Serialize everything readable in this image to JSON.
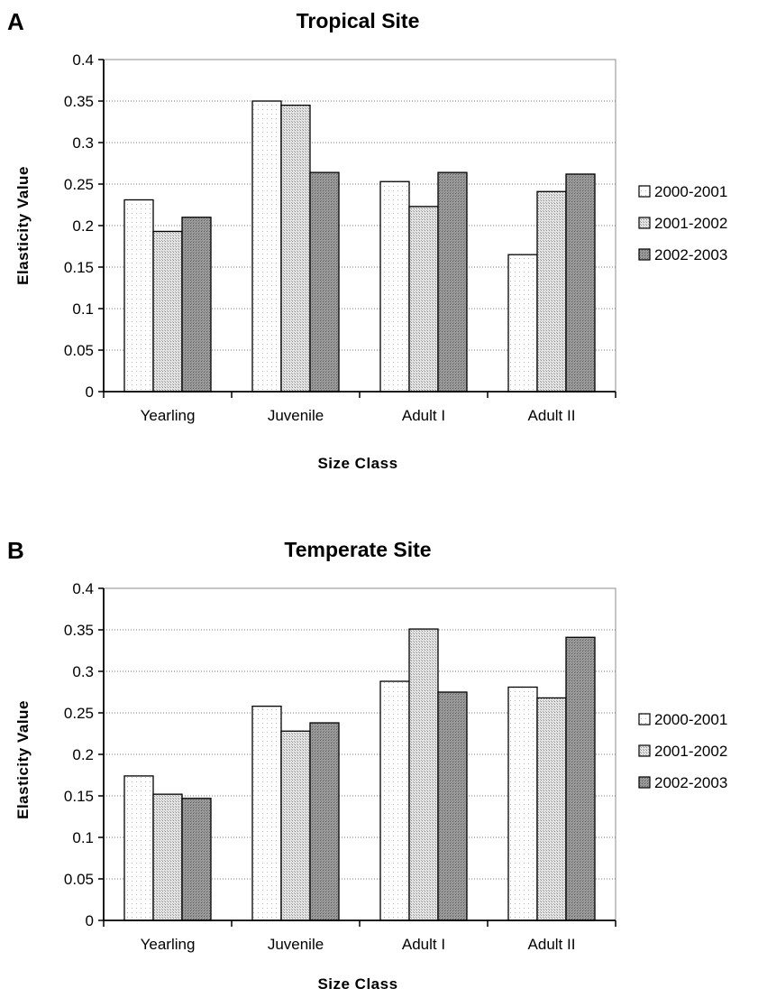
{
  "chart_data": [
    {
      "panel": "A",
      "type": "bar",
      "title": "Tropical Site",
      "xlabel": "Size Class",
      "ylabel": "Elasticity Value",
      "ylim": [
        0,
        0.4
      ],
      "yticks": [
        "0",
        "0.05",
        "0.1",
        "0.15",
        "0.2",
        "0.25",
        "0.3",
        "0.35",
        "0.4"
      ],
      "grid": "horizontal dotted",
      "legend_position": "right",
      "categories": [
        "Yearling",
        "Juvenile",
        "Adult I",
        "Adult II"
      ],
      "series": [
        {
          "name": "2000-2001",
          "values": [
            0.231,
            0.35,
            0.253,
            0.165
          ]
        },
        {
          "name": "2001-2002",
          "values": [
            0.193,
            0.345,
            0.223,
            0.241
          ]
        },
        {
          "name": "2002-2003",
          "values": [
            0.21,
            0.264,
            0.264,
            0.262
          ]
        }
      ]
    },
    {
      "panel": "B",
      "type": "bar",
      "title": "Temperate Site",
      "xlabel": "Size Class",
      "ylabel": "Elasticity Value",
      "ylim": [
        0,
        0.4
      ],
      "yticks": [
        "0",
        "0.05",
        "0.1",
        "0.15",
        "0.2",
        "0.25",
        "0.3",
        "0.35",
        "0.4"
      ],
      "grid": "horizontal dotted",
      "legend_position": "right",
      "categories": [
        "Yearling",
        "Juvenile",
        "Adult I",
        "Adult II"
      ],
      "series": [
        {
          "name": "2000-2001",
          "values": [
            0.174,
            0.258,
            0.288,
            0.281
          ]
        },
        {
          "name": "2001-2002",
          "values": [
            0.152,
            0.228,
            0.351,
            0.268
          ]
        },
        {
          "name": "2002-2003",
          "values": [
            0.147,
            0.238,
            0.275,
            0.341
          ]
        }
      ]
    }
  ],
  "colors": {
    "series_fill": [
      "#f7f7f7",
      "#d2d2d2",
      "#8a8a8a"
    ],
    "bar_stroke": "#000000",
    "grid": "#777777"
  }
}
